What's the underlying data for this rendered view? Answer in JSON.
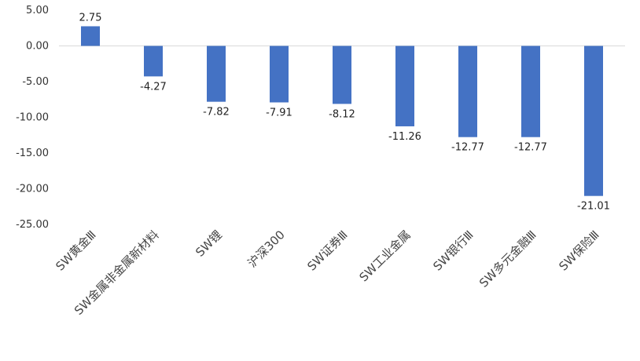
{
  "chart_data": {
    "type": "bar",
    "title": "",
    "xlabel": "",
    "ylabel": "",
    "categories": [
      "SW黄金Ⅲ",
      "SW金属非金属新材料",
      "SW锂",
      "沪深300",
      "SW证券Ⅲ",
      "SW工业金属",
      "SW银行Ⅲ",
      "SW多元金融Ⅲ",
      "SW保险Ⅲ"
    ],
    "values": [
      2.75,
      -4.27,
      -7.82,
      -7.91,
      -8.12,
      -11.26,
      -12.77,
      -12.77,
      -21.01
    ],
    "value_labels": [
      "2.75",
      "-4.27",
      "-7.82",
      "-7.91",
      "-8.12",
      "-11.26",
      "-12.77",
      "-12.77",
      "-21.01"
    ],
    "ylim": [
      -25,
      5
    ],
    "yticks": [
      5,
      0,
      -5,
      -10,
      -15,
      -20,
      -25
    ],
    "ytick_labels": [
      "5.00",
      "0.00",
      "-5.00",
      "-10.00",
      "-15.00",
      "-20.00",
      "-25.00"
    ],
    "bar_color": "#4472C4",
    "zero_line_color": "#D9D9D9",
    "grid": false,
    "legend": "none"
  }
}
